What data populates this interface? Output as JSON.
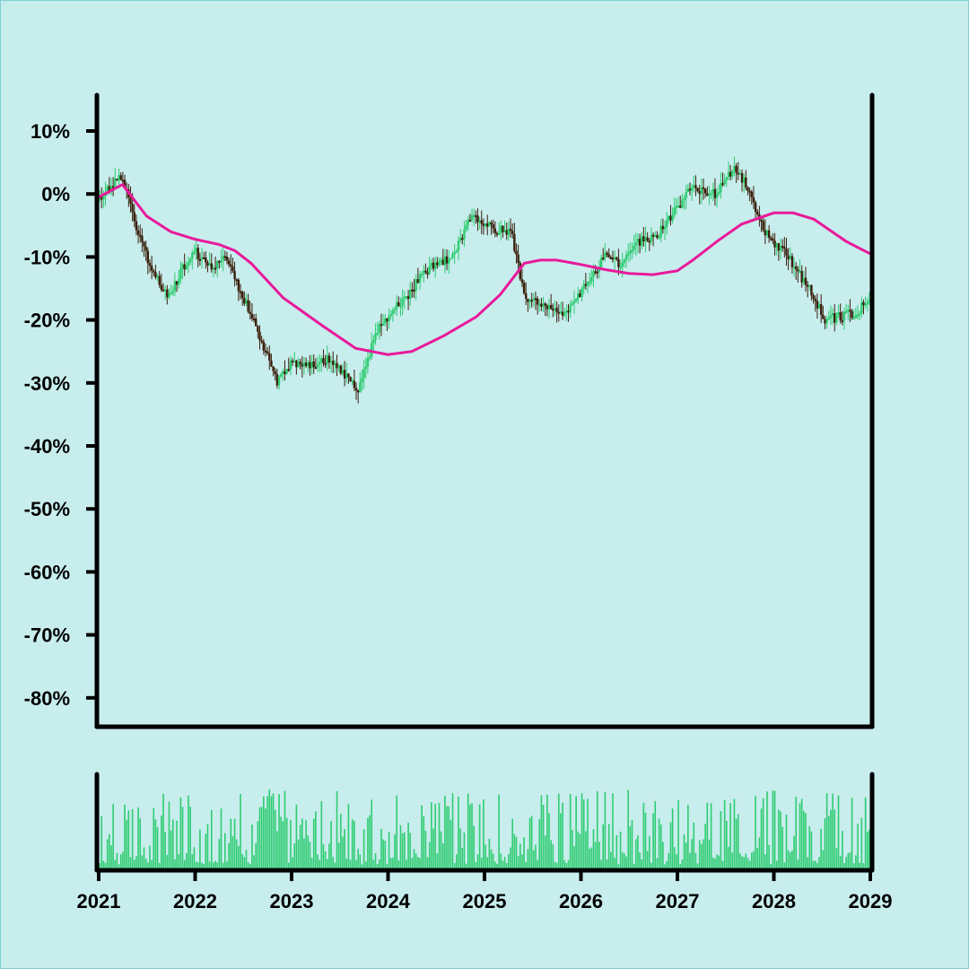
{
  "colors": {
    "background": "#c8eded",
    "up_candle": "#2ecc71",
    "down_candle": "#3a1e0a",
    "moving_average": "#e8199a",
    "volume": "#2ecc71",
    "axis": "#000000"
  },
  "chart_data": {
    "type": "candlestick",
    "title": "",
    "xlabel": "",
    "ylabel": "",
    "x_ticks": [
      "2021",
      "2022",
      "2023",
      "2024",
      "2025",
      "2026",
      "2027",
      "2028",
      "2029"
    ],
    "y_ticks": [
      "10%",
      "0%",
      "-10%",
      "-20%",
      "-30%",
      "-40%",
      "-50%",
      "-60%",
      "-70%",
      "-80%"
    ],
    "ylim": [
      -85,
      15
    ],
    "xlim": [
      "2021-01-01",
      "2029-01-01"
    ],
    "series": [
      {
        "type": "candlestick",
        "price_path": [
          [
            "2021-01-01",
            -1
          ],
          [
            "2021-04-01",
            3
          ],
          [
            "2021-06-15",
            -8
          ],
          [
            "2021-09-01",
            -15
          ],
          [
            "2021-10-01",
            -16
          ],
          [
            "2021-11-15",
            -12
          ],
          [
            "2022-01-01",
            -9
          ],
          [
            "2022-03-15",
            -12
          ],
          [
            "2022-05-01",
            -10
          ],
          [
            "2022-08-01",
            -19
          ],
          [
            "2022-11-15",
            -30
          ],
          [
            "2023-01-01",
            -27
          ],
          [
            "2023-04-01",
            -27
          ],
          [
            "2023-06-01",
            -26
          ],
          [
            "2023-09-15",
            -31
          ],
          [
            "2023-12-01",
            -21
          ],
          [
            "2024-03-01",
            -17
          ],
          [
            "2024-06-01",
            -12
          ],
          [
            "2024-09-01",
            -10
          ],
          [
            "2024-11-20",
            -3
          ],
          [
            "2025-01-01",
            -5
          ],
          [
            "2025-04-15",
            -6
          ],
          [
            "2025-06-10",
            -17
          ],
          [
            "2025-09-15",
            -18
          ],
          [
            "2025-11-01",
            -19
          ],
          [
            "2026-01-01",
            -16
          ],
          [
            "2026-04-01",
            -10
          ],
          [
            "2026-06-01",
            -11
          ],
          [
            "2026-08-01",
            -8
          ],
          [
            "2026-11-01",
            -6
          ],
          [
            "2027-03-01",
            1
          ],
          [
            "2027-06-01",
            0
          ],
          [
            "2027-08-01",
            4
          ],
          [
            "2027-09-15",
            2
          ],
          [
            "2027-12-01",
            -6
          ],
          [
            "2028-03-01",
            -10
          ],
          [
            "2028-06-01",
            -16
          ],
          [
            "2028-07-15",
            -20
          ],
          [
            "2028-11-01",
            -19
          ],
          [
            "2029-01-01",
            -17
          ]
        ]
      },
      {
        "type": "line",
        "points": [
          [
            "2021-01-01",
            -0.5
          ],
          [
            "2021-04-01",
            1.5
          ],
          [
            "2021-07-01",
            -3.5
          ],
          [
            "2021-10-01",
            -6
          ],
          [
            "2022-01-01",
            -7.2
          ],
          [
            "2022-04-01",
            -8
          ],
          [
            "2022-06-01",
            -9
          ],
          [
            "2022-08-01",
            -11
          ],
          [
            "2022-12-01",
            -16.5
          ],
          [
            "2023-05-01",
            -21
          ],
          [
            "2023-09-01",
            -24.5
          ],
          [
            "2024-01-01",
            -25.5
          ],
          [
            "2024-04-01",
            -25
          ],
          [
            "2024-08-01",
            -22.5
          ],
          [
            "2024-12-01",
            -19.5
          ],
          [
            "2025-03-01",
            -16
          ],
          [
            "2025-06-01",
            -11
          ],
          [
            "2025-08-01",
            -10.5
          ],
          [
            "2025-10-01",
            -10.5
          ],
          [
            "2026-01-01",
            -11.2
          ],
          [
            "2026-04-01",
            -12
          ],
          [
            "2026-07-01",
            -12.6
          ],
          [
            "2026-10-01",
            -12.8
          ],
          [
            "2027-01-01",
            -12.2
          ],
          [
            "2027-03-01",
            -10.5
          ],
          [
            "2027-06-01",
            -7.5
          ],
          [
            "2027-09-01",
            -4.8
          ],
          [
            "2028-01-01",
            -3
          ],
          [
            "2028-03-15",
            -3
          ],
          [
            "2028-06-01",
            -4
          ],
          [
            "2028-10-01",
            -7.5
          ],
          [
            "2029-01-01",
            -9.5
          ]
        ]
      },
      {
        "type": "bar",
        "count": 400,
        "max": 100
      }
    ]
  }
}
